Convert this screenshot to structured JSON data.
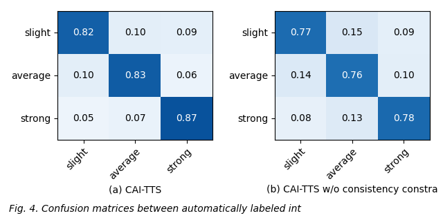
{
  "chart_data": [
    {
      "type": "heatmap",
      "xlabel": "(a) CAI-TTS",
      "x_categories": [
        "slight",
        "average",
        "strong"
      ],
      "y_categories": [
        "slight",
        "average",
        "strong"
      ],
      "cells": [
        [
          0.82,
          0.1,
          0.09
        ],
        [
          0.1,
          0.83,
          0.06
        ],
        [
          0.05,
          0.07,
          0.87
        ]
      ],
      "value_labels": [
        [
          "0.82",
          "0.10",
          "0.09"
        ],
        [
          "0.10",
          "0.83",
          "0.06"
        ],
        [
          "0.05",
          "0.07",
          "0.87"
        ]
      ],
      "color_range": [
        0.0,
        1.0
      ],
      "color": "Blues",
      "data_labels": true
    },
    {
      "type": "heatmap",
      "xlabel": "(b) CAI-TTS w/o consistency constra",
      "x_categories": [
        "slight",
        "average",
        "strong"
      ],
      "y_categories": [
        "slight",
        "average",
        "strong"
      ],
      "cells": [
        [
          0.77,
          0.15,
          0.09
        ],
        [
          0.14,
          0.76,
          0.1
        ],
        [
          0.08,
          0.13,
          0.78
        ]
      ],
      "value_labels": [
        [
          "0.77",
          "0.15",
          "0.09"
        ],
        [
          "0.14",
          "0.76",
          "0.10"
        ],
        [
          "0.08",
          "0.13",
          "0.78"
        ]
      ],
      "color_range": [
        0.0,
        1.0
      ],
      "color": "Blues",
      "data_labels": true
    }
  ],
  "caption": "Fig. 4. Confusion matrices between automatically labeled int"
}
